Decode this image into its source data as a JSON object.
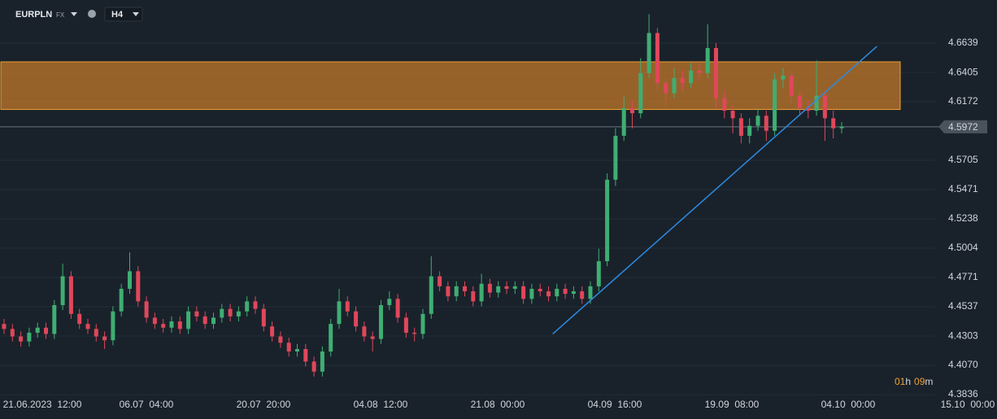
{
  "chart_data": {
    "type": "candlestick",
    "symbol": "EURPLN",
    "market": "FX",
    "timeframe": "H4",
    "x_labels": [
      "21.06.2023  12:00",
      "06.07  04:00",
      "20.07  20:00",
      "04.08  12:00",
      "21.08  00:00",
      "04.09  16:00",
      "19.09  08:00",
      "04.10  00:00",
      "15.10  00:00"
    ],
    "open": [
      4.44,
      4.436,
      4.43,
      4.426,
      4.433,
      4.437,
      4.432,
      4.455,
      4.478,
      4.448,
      4.44,
      4.436,
      4.43,
      4.427,
      4.45,
      4.468,
      4.482,
      4.458,
      4.445,
      4.44,
      4.437,
      4.442,
      4.436,
      4.45,
      4.446,
      4.44,
      4.445,
      4.452,
      4.446,
      4.45,
      4.458,
      4.452,
      4.438,
      4.43,
      4.425,
      4.418,
      4.42,
      4.41,
      4.402,
      4.418,
      4.44,
      4.458,
      4.45,
      4.438,
      4.43,
      4.428,
      4.455,
      4.46,
      4.445,
      4.433,
      4.432,
      4.448,
      4.478,
      4.47,
      4.462,
      4.47,
      4.466,
      4.458,
      4.472,
      4.465,
      4.47,
      4.468,
      4.47,
      4.46,
      4.468,
      4.466,
      4.462,
      4.468,
      4.464,
      4.466,
      4.46,
      4.47,
      4.49,
      4.555,
      4.59,
      4.612,
      4.608,
      4.64,
      4.672,
      4.632,
      4.624,
      4.636,
      4.632,
      4.642,
      4.64,
      4.66,
      4.62,
      4.61,
      4.604,
      4.59,
      4.598,
      4.606,
      4.594,
      4.635,
      4.638,
      4.622,
      4.612,
      4.61,
      4.622,
      4.604,
      4.596
    ],
    "high": [
      4.444,
      4.44,
      4.434,
      4.437,
      4.441,
      4.441,
      4.459,
      4.488,
      4.482,
      4.452,
      4.444,
      4.44,
      4.434,
      4.454,
      4.472,
      4.497,
      4.486,
      4.462,
      4.449,
      4.444,
      4.446,
      4.446,
      4.454,
      4.454,
      4.45,
      4.449,
      4.456,
      4.456,
      4.454,
      4.462,
      4.462,
      4.456,
      4.442,
      4.434,
      4.429,
      4.424,
      4.424,
      4.414,
      4.422,
      4.444,
      4.468,
      4.462,
      4.454,
      4.442,
      4.434,
      4.459,
      4.466,
      4.464,
      4.449,
      4.437,
      4.452,
      4.494,
      4.482,
      4.474,
      4.474,
      4.474,
      4.47,
      4.48,
      4.476,
      4.474,
      4.474,
      4.474,
      4.474,
      4.472,
      4.472,
      4.47,
      4.472,
      4.472,
      4.47,
      4.47,
      4.474,
      4.5,
      4.56,
      4.596,
      4.622,
      4.618,
      4.652,
      4.687,
      4.676,
      4.636,
      4.644,
      4.642,
      4.648,
      4.648,
      4.679,
      4.664,
      4.626,
      4.614,
      4.608,
      4.604,
      4.612,
      4.61,
      4.64,
      4.644,
      4.642,
      4.626,
      4.618,
      4.65,
      4.626,
      4.61,
      4.601
    ],
    "low": [
      4.432,
      4.426,
      4.422,
      4.422,
      4.429,
      4.428,
      4.428,
      4.451,
      4.444,
      4.436,
      4.432,
      4.426,
      4.42,
      4.423,
      4.446,
      4.464,
      4.454,
      4.441,
      4.436,
      4.433,
      4.433,
      4.432,
      4.432,
      4.442,
      4.436,
      4.436,
      4.441,
      4.442,
      4.442,
      4.446,
      4.448,
      4.434,
      4.426,
      4.421,
      4.414,
      4.414,
      4.406,
      4.398,
      4.398,
      4.414,
      4.436,
      4.446,
      4.434,
      4.426,
      4.418,
      4.424,
      4.451,
      4.441,
      4.429,
      4.426,
      4.428,
      4.444,
      4.466,
      4.458,
      4.458,
      4.462,
      4.454,
      4.454,
      4.461,
      4.461,
      4.464,
      4.464,
      4.456,
      4.456,
      4.462,
      4.458,
      4.458,
      4.46,
      4.46,
      4.456,
      4.456,
      4.466,
      4.486,
      4.55,
      4.586,
      4.596,
      4.604,
      4.636,
      4.626,
      4.614,
      4.62,
      4.626,
      4.628,
      4.634,
      4.636,
      4.612,
      4.604,
      4.592,
      4.584,
      4.584,
      4.594,
      4.586,
      4.59,
      4.628,
      4.616,
      4.606,
      4.604,
      4.606,
      4.586,
      4.588,
      4.592
    ],
    "close": [
      4.436,
      4.43,
      4.426,
      4.433,
      4.437,
      4.432,
      4.455,
      4.478,
      4.448,
      4.44,
      4.436,
      4.43,
      4.427,
      4.45,
      4.468,
      4.482,
      4.458,
      4.445,
      4.44,
      4.437,
      4.442,
      4.436,
      4.45,
      4.446,
      4.44,
      4.445,
      4.452,
      4.446,
      4.45,
      4.458,
      4.452,
      4.438,
      4.43,
      4.425,
      4.418,
      4.42,
      4.41,
      4.402,
      4.418,
      4.44,
      4.458,
      4.45,
      4.438,
      4.43,
      4.428,
      4.455,
      4.46,
      4.445,
      4.433,
      4.432,
      4.448,
      4.478,
      4.47,
      4.462,
      4.47,
      4.466,
      4.458,
      4.472,
      4.465,
      4.47,
      4.468,
      4.47,
      4.46,
      4.468,
      4.466,
      4.462,
      4.468,
      4.464,
      4.466,
      4.46,
      4.47,
      4.49,
      4.555,
      4.59,
      4.612,
      4.608,
      4.64,
      4.672,
      4.632,
      4.624,
      4.636,
      4.632,
      4.642,
      4.64,
      4.66,
      4.62,
      4.61,
      4.604,
      4.59,
      4.598,
      4.606,
      4.594,
      4.635,
      4.638,
      4.622,
      4.612,
      4.61,
      4.622,
      4.604,
      4.596,
      4.5972
    ],
    "up_color": "#3fae72",
    "down_color": "#e0475a",
    "ylim": [
      4.3817,
      4.6983
    ],
    "yticks": [
      4.6639,
      4.6405,
      4.6172,
      {
        "value": 4.5705,
        "label": "4.5705"
      },
      4.5471,
      4.5238,
      {
        "value": 4.5004,
        "label": "4.5004"
      },
      4.4771,
      4.4537,
      4.4303,
      {
        "value": 4.407,
        "label": "4.4070"
      },
      4.3836
    ],
    "grid": true,
    "zone": {
      "high": 4.649,
      "low": 4.611,
      "color": "#c77b2a"
    },
    "trendline": {
      "start": {
        "index": 65.5,
        "value": 4.432
      },
      "end": {
        "index": 104.2,
        "value": 4.6613
      },
      "color": "#2d8be0"
    },
    "last_price": {
      "value": 4.5972,
      "label": "4.5972"
    },
    "countdown": [
      "01",
      "h",
      "09",
      "m"
    ]
  }
}
